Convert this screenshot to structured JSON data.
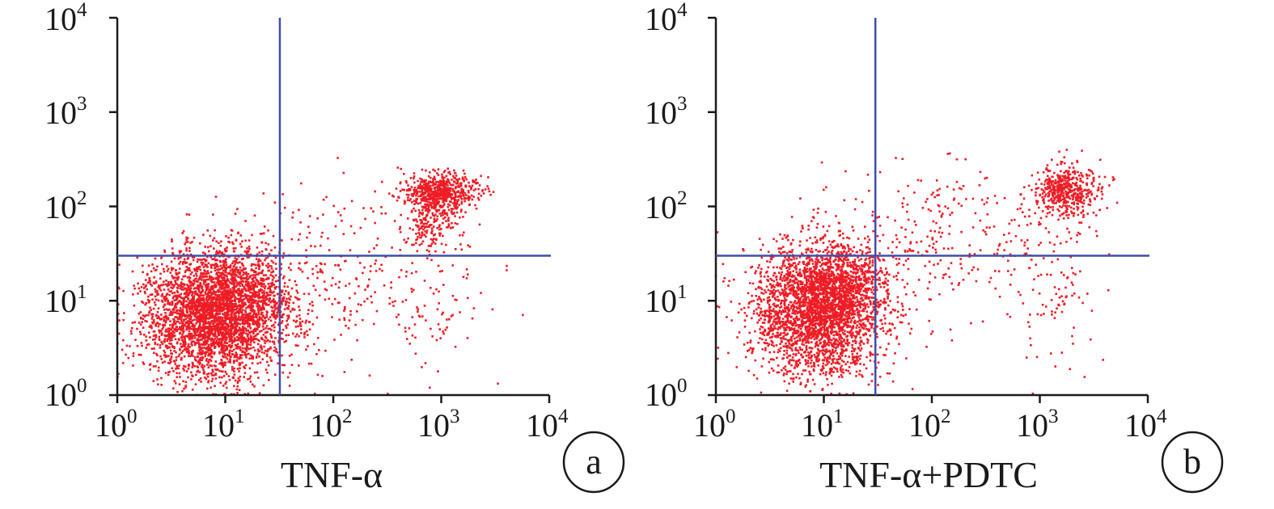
{
  "colors": {
    "points": "#ee1c25",
    "gate": "#3f4fa8",
    "axis": "#1a1a1a"
  },
  "chart_data": [
    {
      "type": "scatter",
      "panel_label": "a",
      "xlabel": "TNF-α",
      "ylabel": "",
      "xscale": "log",
      "yscale": "log",
      "xlim": [
        1,
        10000
      ],
      "ylim": [
        1,
        10000
      ],
      "tick_labels": [
        "10",
        "10",
        "10",
        "10",
        "10"
      ],
      "tick_exponents": [
        "0",
        "1",
        "2",
        "3",
        "4"
      ],
      "quadrant_gate": {
        "x": 32,
        "y": 30
      },
      "populations": [
        {
          "center": [
            8,
            7
          ],
          "spread_decades": [
            0.33,
            0.33
          ],
          "count": 3200
        },
        {
          "center": [
            15,
            12
          ],
          "spread_decades": [
            0.25,
            0.25
          ],
          "count": 500
        },
        {
          "center": [
            1000,
            140
          ],
          "spread_decades": [
            0.17,
            0.1
          ],
          "count": 600
        },
        {
          "center": [
            800,
            70
          ],
          "spread_decades": [
            0.14,
            0.16
          ],
          "count": 220
        },
        {
          "center": [
            120,
            20
          ],
          "spread_decades": [
            0.55,
            0.45
          ],
          "count": 260
        },
        {
          "center": [
            900,
            8
          ],
          "spread_decades": [
            0.22,
            0.4
          ],
          "count": 60
        }
      ]
    },
    {
      "type": "scatter",
      "panel_label": "b",
      "xlabel": "TNF-α+PDTC",
      "ylabel": "",
      "xscale": "log",
      "yscale": "log",
      "xlim": [
        1,
        10000
      ],
      "ylim": [
        1,
        10000
      ],
      "tick_labels": [
        "10",
        "10",
        "10",
        "10",
        "10"
      ],
      "tick_exponents": [
        "0",
        "1",
        "2",
        "3",
        "4"
      ],
      "quadrant_gate": {
        "x": 30,
        "y": 30
      },
      "populations": [
        {
          "center": [
            9,
            8
          ],
          "spread_decades": [
            0.3,
            0.35
          ],
          "count": 2900
        },
        {
          "center": [
            15,
            15
          ],
          "spread_decades": [
            0.2,
            0.22
          ],
          "count": 500
        },
        {
          "center": [
            1800,
            150
          ],
          "spread_decades": [
            0.15,
            0.14
          ],
          "count": 480
        },
        {
          "center": [
            180,
            40
          ],
          "spread_decades": [
            0.6,
            0.45
          ],
          "count": 300
        },
        {
          "center": [
            1500,
            10
          ],
          "spread_decades": [
            0.2,
            0.4
          ],
          "count": 70
        }
      ]
    }
  ]
}
